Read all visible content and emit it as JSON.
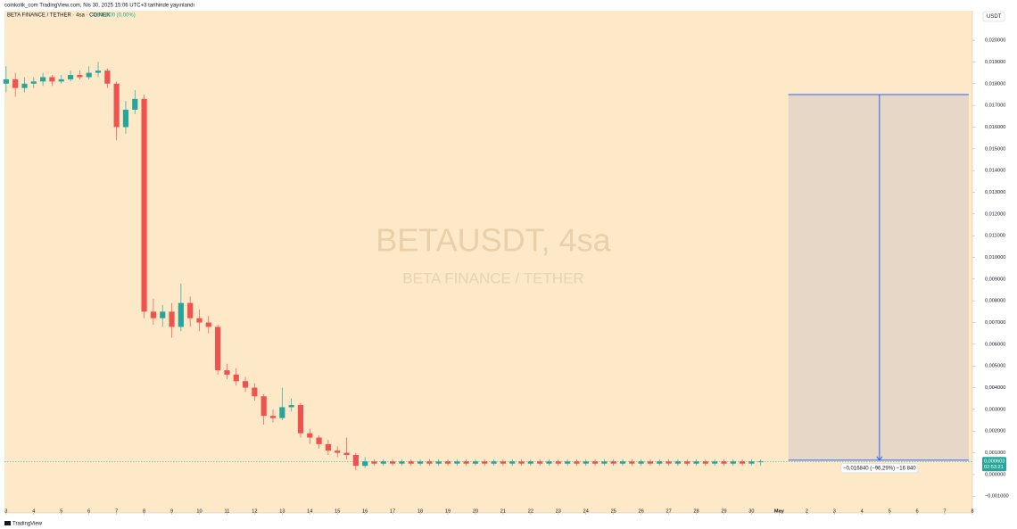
{
  "header": {
    "publisher": "coinkolik_com TradingView.com, Nis 30, 2025 15:06 UTC+3 tarihinde yayınlandı",
    "brand": "TradingView"
  },
  "chart_data": {
    "type": "candlestick",
    "legend_title": "BETA FINANCE / TETHER · 4sa · COINEX",
    "legend_change": "0,000000 (0,00%)",
    "currency": "USDT",
    "watermark": "BETAUSDT, 4sa",
    "watermark_subtitle": "BETA FINANCE / TETHER",
    "up_color": "#26a69a",
    "down_color": "#ef5350",
    "background": "#fde8c8",
    "grid": false,
    "xlim": [
      -0.18,
      105.0
    ],
    "ylim": [
      -0.00177,
      0.02136
    ],
    "xticks": [
      {
        "value": 0,
        "label": "3"
      },
      {
        "value": 3,
        "label": "4"
      },
      {
        "value": 6,
        "label": "5"
      },
      {
        "value": 9,
        "label": "6"
      },
      {
        "value": 12,
        "label": "7"
      },
      {
        "value": 15,
        "label": "8"
      },
      {
        "value": 18,
        "label": "9"
      },
      {
        "value": 21,
        "label": "10"
      },
      {
        "value": 24,
        "label": "11"
      },
      {
        "value": 27,
        "label": "12"
      },
      {
        "value": 30,
        "label": "13"
      },
      {
        "value": 33,
        "label": "14"
      },
      {
        "value": 36,
        "label": "15"
      },
      {
        "value": 39,
        "label": "16"
      },
      {
        "value": 42,
        "label": "17"
      },
      {
        "value": 45,
        "label": "18"
      },
      {
        "value": 48,
        "label": "19"
      },
      {
        "value": 51,
        "label": "20"
      },
      {
        "value": 54,
        "label": "21"
      },
      {
        "value": 57,
        "label": "22"
      },
      {
        "value": 60,
        "label": "23"
      },
      {
        "value": 63,
        "label": "24"
      },
      {
        "value": 66,
        "label": "25"
      },
      {
        "value": 69,
        "label": "26"
      },
      {
        "value": 72,
        "label": "27"
      },
      {
        "value": 75,
        "label": "28"
      },
      {
        "value": 78,
        "label": "29"
      },
      {
        "value": 81,
        "label": "30"
      },
      {
        "value": 84,
        "label": "May"
      },
      {
        "value": 87,
        "label": "2"
      },
      {
        "value": 90,
        "label": "3"
      },
      {
        "value": 93,
        "label": "4"
      },
      {
        "value": 96,
        "label": "5"
      },
      {
        "value": 99,
        "label": "6"
      },
      {
        "value": 102,
        "label": "7"
      },
      {
        "value": 105,
        "label": "8"
      }
    ],
    "yticks": [
      {
        "value": 0.02,
        "label": "0,020000"
      },
      {
        "value": 0.019,
        "label": "0,019000"
      },
      {
        "value": 0.018,
        "label": "0,018000"
      },
      {
        "value": 0.017,
        "label": "0,017000"
      },
      {
        "value": 0.016,
        "label": "0,016000"
      },
      {
        "value": 0.015,
        "label": "0,015000"
      },
      {
        "value": 0.014,
        "label": "0,014000"
      },
      {
        "value": 0.013,
        "label": "0,013000"
      },
      {
        "value": 0.012,
        "label": "0,012000"
      },
      {
        "value": 0.011,
        "label": "0,011000"
      },
      {
        "value": 0.01,
        "label": "0,010000"
      },
      {
        "value": 0.009,
        "label": "0,009000"
      },
      {
        "value": 0.008,
        "label": "0,008000"
      },
      {
        "value": 0.007,
        "label": "0,007000"
      },
      {
        "value": 0.006,
        "label": "0,006000"
      },
      {
        "value": 0.005,
        "label": "0,005000"
      },
      {
        "value": 0.004,
        "label": "0,004000"
      },
      {
        "value": 0.003,
        "label": "0,003000"
      },
      {
        "value": 0.002,
        "label": "0,002000"
      },
      {
        "value": 0.001,
        "label": "0,001000"
      },
      {
        "value": 0,
        "label": "0,000000"
      },
      {
        "value": -0.001,
        "label": "−0,001000"
      }
    ],
    "open": [
      0.018,
      0.0182,
      0.0178,
      0.018,
      0.0181,
      0.0183,
      0.0181,
      0.0182,
      0.0184,
      0.0183,
      0.0185,
      0.0186,
      0.018,
      0.016,
      0.0168,
      0.0173,
      0.0075,
      0.0072,
      0.0075,
      0.0068,
      0.0079,
      0.0072,
      0.007,
      0.0068,
      0.0048,
      0.0046,
      0.0043,
      0.004,
      0.0036,
      0.0027,
      0.0026,
      0.0031,
      0.0032,
      0.0019,
      0.0017,
      0.0014,
      0.0011,
      0.001,
      0.0009,
      0.0004,
      0.0006,
      0.0005,
      0.0006,
      0.0005,
      0.0006,
      0.0005,
      0.0006,
      0.0005,
      0.0006,
      0.0005,
      0.0006,
      0.0005,
      0.0006,
      0.0005,
      0.0006,
      0.0005,
      0.0006,
      0.0005,
      0.0006,
      0.0005,
      0.0006,
      0.0005,
      0.0006,
      0.0005,
      0.0006,
      0.0005,
      0.0006,
      0.0005,
      0.0006,
      0.0005,
      0.0006,
      0.0005,
      0.0006,
      0.0005,
      0.0006,
      0.0005,
      0.0006,
      0.0005,
      0.0006,
      0.0005,
      0.0006,
      0.0005,
      0.0006
    ],
    "high": [
      0.0188,
      0.0185,
      0.0183,
      0.0183,
      0.0185,
      0.0184,
      0.0184,
      0.0186,
      0.0186,
      0.0188,
      0.019,
      0.0187,
      0.0181,
      0.0172,
      0.0177,
      0.0175,
      0.0081,
      0.0078,
      0.0079,
      0.0088,
      0.0082,
      0.0076,
      0.0073,
      0.0069,
      0.0051,
      0.0049,
      0.0045,
      0.0042,
      0.0037,
      0.003,
      0.004,
      0.0035,
      0.0033,
      0.0021,
      0.0018,
      0.0016,
      0.0013,
      0.0017,
      0.001,
      0.0008,
      0.0007,
      0.0007,
      0.0007,
      0.0007,
      0.0007,
      0.0007,
      0.0007,
      0.0007,
      0.0007,
      0.0007,
      0.0007,
      0.0007,
      0.0007,
      0.0007,
      0.0007,
      0.0007,
      0.0007,
      0.0007,
      0.0007,
      0.0007,
      0.0007,
      0.0007,
      0.0007,
      0.0007,
      0.0007,
      0.0007,
      0.0007,
      0.0007,
      0.0007,
      0.0007,
      0.0007,
      0.0007,
      0.0007,
      0.0007,
      0.0007,
      0.0007,
      0.0007,
      0.0007,
      0.0007,
      0.0007,
      0.0007,
      0.0007,
      0.0007
    ],
    "low": [
      0.0176,
      0.0174,
      0.0176,
      0.0178,
      0.0179,
      0.0179,
      0.018,
      0.0181,
      0.0182,
      0.0182,
      0.0183,
      0.0178,
      0.0154,
      0.0157,
      0.0166,
      0.0072,
      0.0069,
      0.0068,
      0.0063,
      0.0066,
      0.0068,
      0.0066,
      0.0065,
      0.0046,
      0.0044,
      0.0041,
      0.0038,
      0.0034,
      0.0023,
      0.0024,
      0.0025,
      0.0029,
      0.0017,
      0.0014,
      0.0012,
      0.0009,
      0.0008,
      0.0007,
      0.0002,
      0.0003,
      0.0004,
      0.0004,
      0.0004,
      0.0004,
      0.0004,
      0.0004,
      0.0004,
      0.0004,
      0.0004,
      0.0004,
      0.0004,
      0.0004,
      0.0004,
      0.0004,
      0.0004,
      0.0004,
      0.0004,
      0.0004,
      0.0004,
      0.0004,
      0.0004,
      0.0004,
      0.0004,
      0.0004,
      0.0004,
      0.0004,
      0.0004,
      0.0004,
      0.0004,
      0.0004,
      0.0004,
      0.0004,
      0.0004,
      0.0004,
      0.0004,
      0.0004,
      0.0004,
      0.0004,
      0.0004,
      0.0004,
      0.0004,
      0.0004,
      0.0004
    ],
    "close": [
      0.0182,
      0.0178,
      0.018,
      0.0181,
      0.0183,
      0.0181,
      0.0182,
      0.0184,
      0.0183,
      0.0185,
      0.0186,
      0.018,
      0.016,
      0.0168,
      0.0173,
      0.0075,
      0.0072,
      0.0075,
      0.0068,
      0.0079,
      0.0072,
      0.007,
      0.0068,
      0.0048,
      0.0046,
      0.0043,
      0.004,
      0.0036,
      0.0027,
      0.0026,
      0.0031,
      0.0032,
      0.0019,
      0.0017,
      0.0014,
      0.0011,
      0.001,
      0.0009,
      0.0004,
      0.0006,
      0.0005,
      0.0006,
      0.0005,
      0.0006,
      0.0005,
      0.0006,
      0.0005,
      0.0006,
      0.0005,
      0.0006,
      0.0005,
      0.0006,
      0.0005,
      0.0006,
      0.0005,
      0.0006,
      0.0005,
      0.0006,
      0.0005,
      0.0006,
      0.0005,
      0.0006,
      0.0005,
      0.0006,
      0.0005,
      0.0006,
      0.0005,
      0.0006,
      0.0005,
      0.0006,
      0.0005,
      0.0006,
      0.0005,
      0.0006,
      0.0005,
      0.0006,
      0.0005,
      0.0006,
      0.0005,
      0.0006,
      0.0005,
      0.0006,
      0.0006
    ],
    "last_price": 0.000603,
    "last_price_label": "0,000603",
    "countdown": "02:53:21",
    "measure": {
      "top": 0.0175,
      "bottom": 0.00066,
      "x_start": 85,
      "x_end": 104.6,
      "arrow_x": 94.9,
      "color": "#2962ff",
      "label": "−0,016840 (−96,29%) −16 840"
    }
  }
}
